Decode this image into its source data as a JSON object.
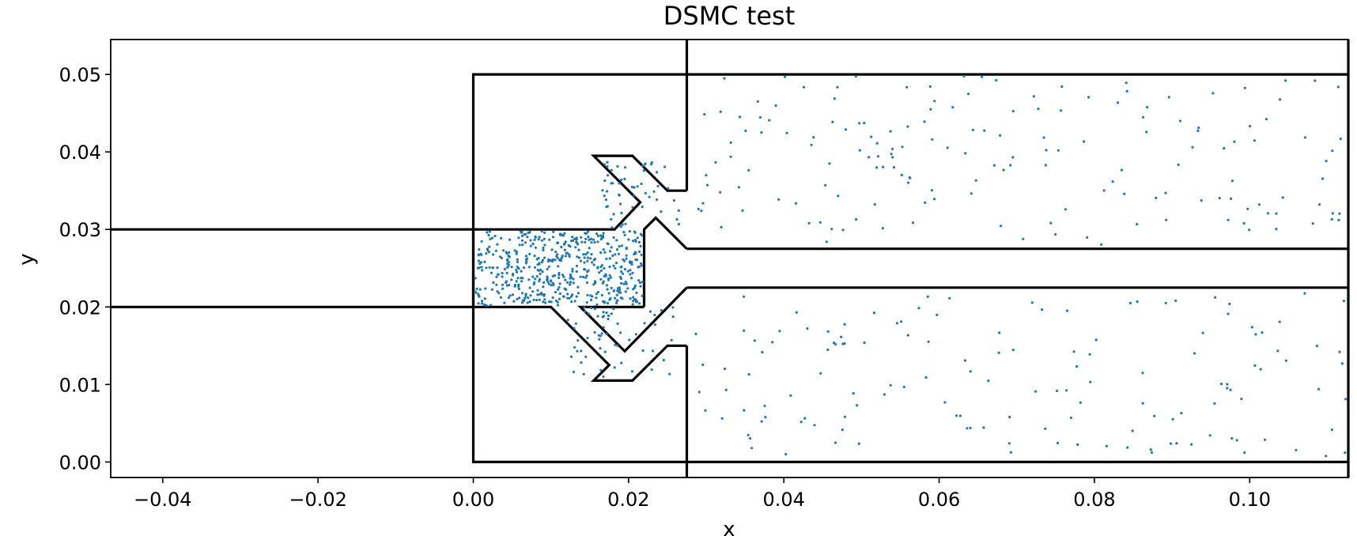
{
  "chart_data": {
    "type": "scatter",
    "title": "DSMC test",
    "xlabel": "x",
    "ylabel": "y",
    "xlim": [
      -0.0467,
      0.1127
    ],
    "ylim": [
      -0.002,
      0.0545
    ],
    "grid": false,
    "legend": "none",
    "colors": {
      "particles": "#1f77b4",
      "walls": "#000000"
    },
    "x_ticks": [
      {
        "value": -0.04,
        "label": "−0.04"
      },
      {
        "value": -0.02,
        "label": "−0.02"
      },
      {
        "value": 0.0,
        "label": "0.00"
      },
      {
        "value": 0.02,
        "label": "0.02"
      },
      {
        "value": 0.04,
        "label": "0.04"
      },
      {
        "value": 0.06,
        "label": "0.06"
      },
      {
        "value": 0.08,
        "label": "0.08"
      },
      {
        "value": 0.1,
        "label": "0.10"
      }
    ],
    "y_ticks": [
      {
        "value": 0.0,
        "label": "0.00"
      },
      {
        "value": 0.01,
        "label": "0.01"
      },
      {
        "value": 0.02,
        "label": "0.02"
      },
      {
        "value": 0.03,
        "label": "0.03"
      },
      {
        "value": 0.04,
        "label": "0.04"
      },
      {
        "value": 0.05,
        "label": "0.05"
      }
    ],
    "walls": [
      {
        "name": "left-lower-wall",
        "points": [
          [
            -0.0467,
            0.02
          ],
          [
            0.0,
            0.02
          ]
        ]
      },
      {
        "name": "left-upper-wall",
        "points": [
          [
            -0.0467,
            0.03
          ],
          [
            0.0,
            0.03
          ]
        ]
      },
      {
        "name": "outer-box-top",
        "points": [
          [
            0.0,
            0.02
          ],
          [
            0.0,
            0.05
          ],
          [
            0.0275,
            0.05
          ]
        ]
      },
      {
        "name": "outer-box-bottom",
        "points": [
          [
            0.0,
            0.03
          ],
          [
            0.0,
            0.0
          ],
          [
            0.0275,
            0.0
          ]
        ]
      },
      {
        "name": "vertical-divider",
        "points": [
          [
            0.0275,
            0.0545
          ],
          [
            0.0275,
            0.035
          ]
        ]
      },
      {
        "name": "vertical-divider-lower",
        "points": [
          [
            0.0275,
            0.015
          ],
          [
            0.0275,
            -0.002
          ]
        ]
      },
      {
        "name": "upper-nozzle-wall",
        "points": [
          [
            0.0275,
            0.035
          ],
          [
            0.025,
            0.035
          ],
          [
            0.0205,
            0.0395
          ],
          [
            0.0155,
            0.0395
          ],
          [
            0.0215,
            0.0335
          ],
          [
            0.0182,
            0.03
          ],
          [
            0.0,
            0.03
          ]
        ]
      },
      {
        "name": "lower-nozzle-wall",
        "points": [
          [
            0.0275,
            0.015
          ],
          [
            0.025,
            0.015
          ],
          [
            0.0205,
            0.0105
          ],
          [
            0.0155,
            0.0105
          ],
          [
            0.0175,
            0.0125
          ],
          [
            0.01,
            0.02
          ],
          [
            0.0,
            0.02
          ]
        ]
      },
      {
        "name": "inner-chamber-upper",
        "points": [
          [
            0.0275,
            0.0275
          ],
          [
            0.0235,
            0.0315
          ],
          [
            0.022,
            0.03
          ],
          [
            0.022,
            0.02
          ]
        ]
      },
      {
        "name": "inner-chamber-lower",
        "points": [
          [
            0.022,
            0.02
          ],
          [
            0.0138,
            0.02
          ],
          [
            0.0195,
            0.0143
          ],
          [
            0.0275,
            0.0225
          ]
        ]
      },
      {
        "name": "upper-channel-bottom",
        "points": [
          [
            0.0275,
            0.0275
          ],
          [
            0.1127,
            0.0275
          ]
        ]
      },
      {
        "name": "lower-channel-top",
        "points": [
          [
            0.0275,
            0.0225
          ],
          [
            0.1127,
            0.0225
          ]
        ]
      },
      {
        "name": "top-wall",
        "points": [
          [
            0.0275,
            0.05
          ],
          [
            0.1127,
            0.05
          ]
        ]
      },
      {
        "name": "bottom-wall",
        "points": [
          [
            0.0275,
            0.0
          ],
          [
            0.1127,
            0.0
          ]
        ]
      },
      {
        "name": "right-frame",
        "points": [
          [
            0.1127,
            0.0545
          ],
          [
            0.1127,
            -0.002
          ]
        ]
      }
    ],
    "particle_regions": [
      {
        "name": "inlet-chamber",
        "count": 520,
        "x_range": [
          0.0002,
          0.0218
        ],
        "y_range": [
          0.0202,
          0.0298
        ],
        "seed": 11
      },
      {
        "name": "upper-nozzle",
        "count": 55,
        "x_range": [
          0.0165,
          0.0265
        ],
        "y_range": [
          0.03,
          0.039
        ],
        "seed": 23
      },
      {
        "name": "lower-nozzle",
        "count": 60,
        "x_range": [
          0.012,
          0.0265
        ],
        "y_range": [
          0.011,
          0.02
        ],
        "seed": 37
      },
      {
        "name": "upper-channel",
        "count": 165,
        "x_range": [
          0.028,
          0.1125
        ],
        "y_range": [
          0.028,
          0.0498
        ],
        "seed": 41
      },
      {
        "name": "lower-channel",
        "count": 140,
        "x_range": [
          0.028,
          0.1125
        ],
        "y_range": [
          0.0005,
          0.0222
        ],
        "seed": 53
      }
    ]
  }
}
